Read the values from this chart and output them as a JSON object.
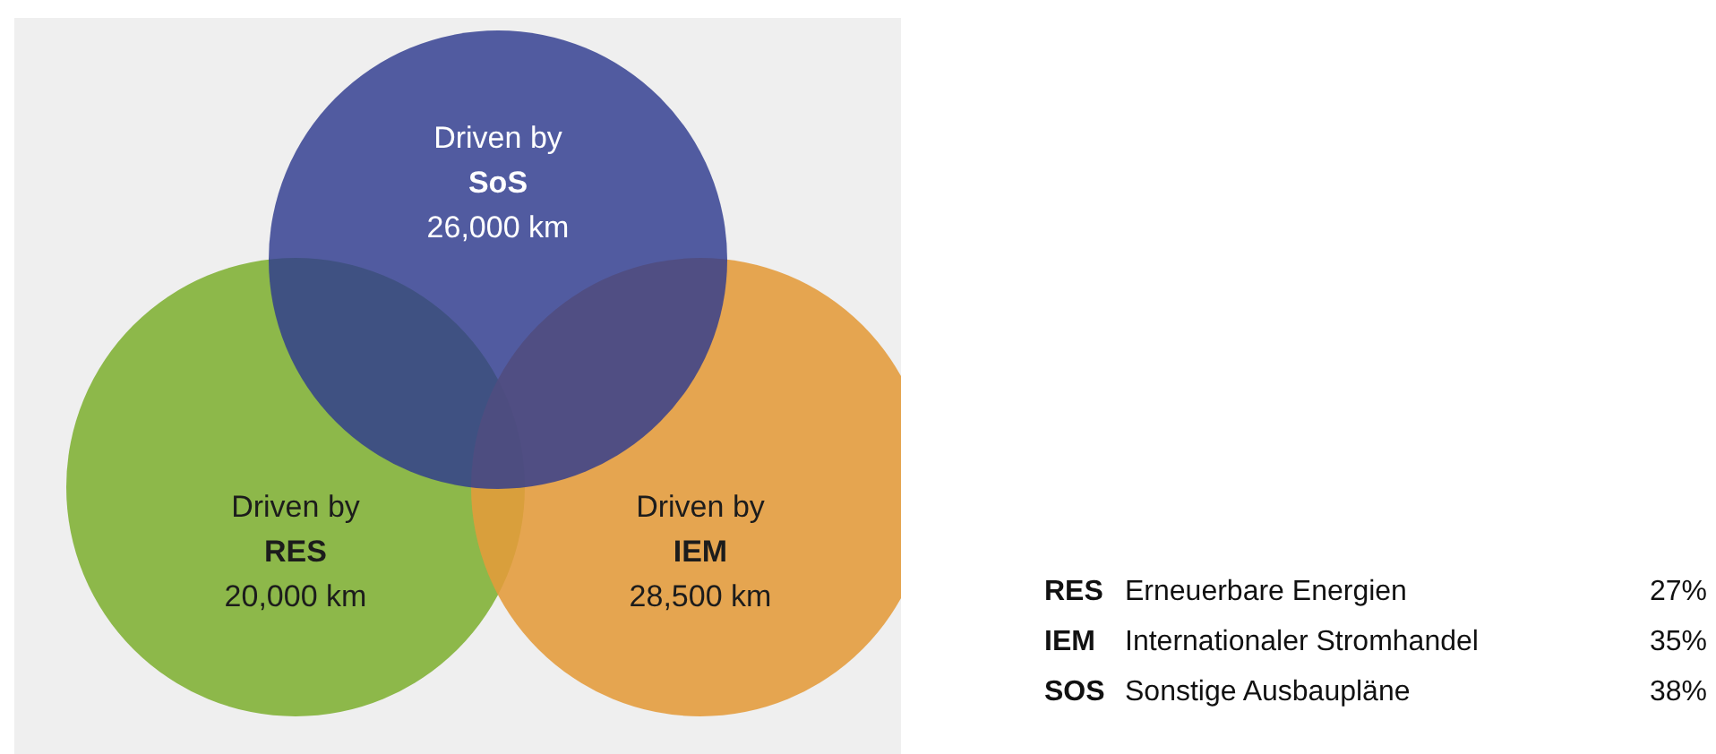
{
  "chart_data": [
    {
      "type": "other",
      "categories": [
        "SoS",
        "RES",
        "IEM"
      ],
      "values": [
        26000,
        20000,
        28500
      ],
      "value_labels": [
        "26,000 km",
        "20,000 km",
        "28,500 km"
      ],
      "colors": [
        "#2e3a8f",
        "#8db84a",
        "#e49b3a"
      ],
      "annotations": [
        "Driven by",
        "Driven by",
        "Driven by"
      ]
    },
    {
      "type": "other",
      "categories": [
        "RES",
        "IEM",
        "SOS"
      ],
      "y2_categories": [
        "Erneuerbare Energien",
        "Internationaler Stromhandel",
        "Sonstige Ausbaupläne"
      ],
      "values": [
        27,
        35,
        38
      ],
      "value_labels": [
        "27%",
        "35%",
        "38%"
      ]
    }
  ]
}
